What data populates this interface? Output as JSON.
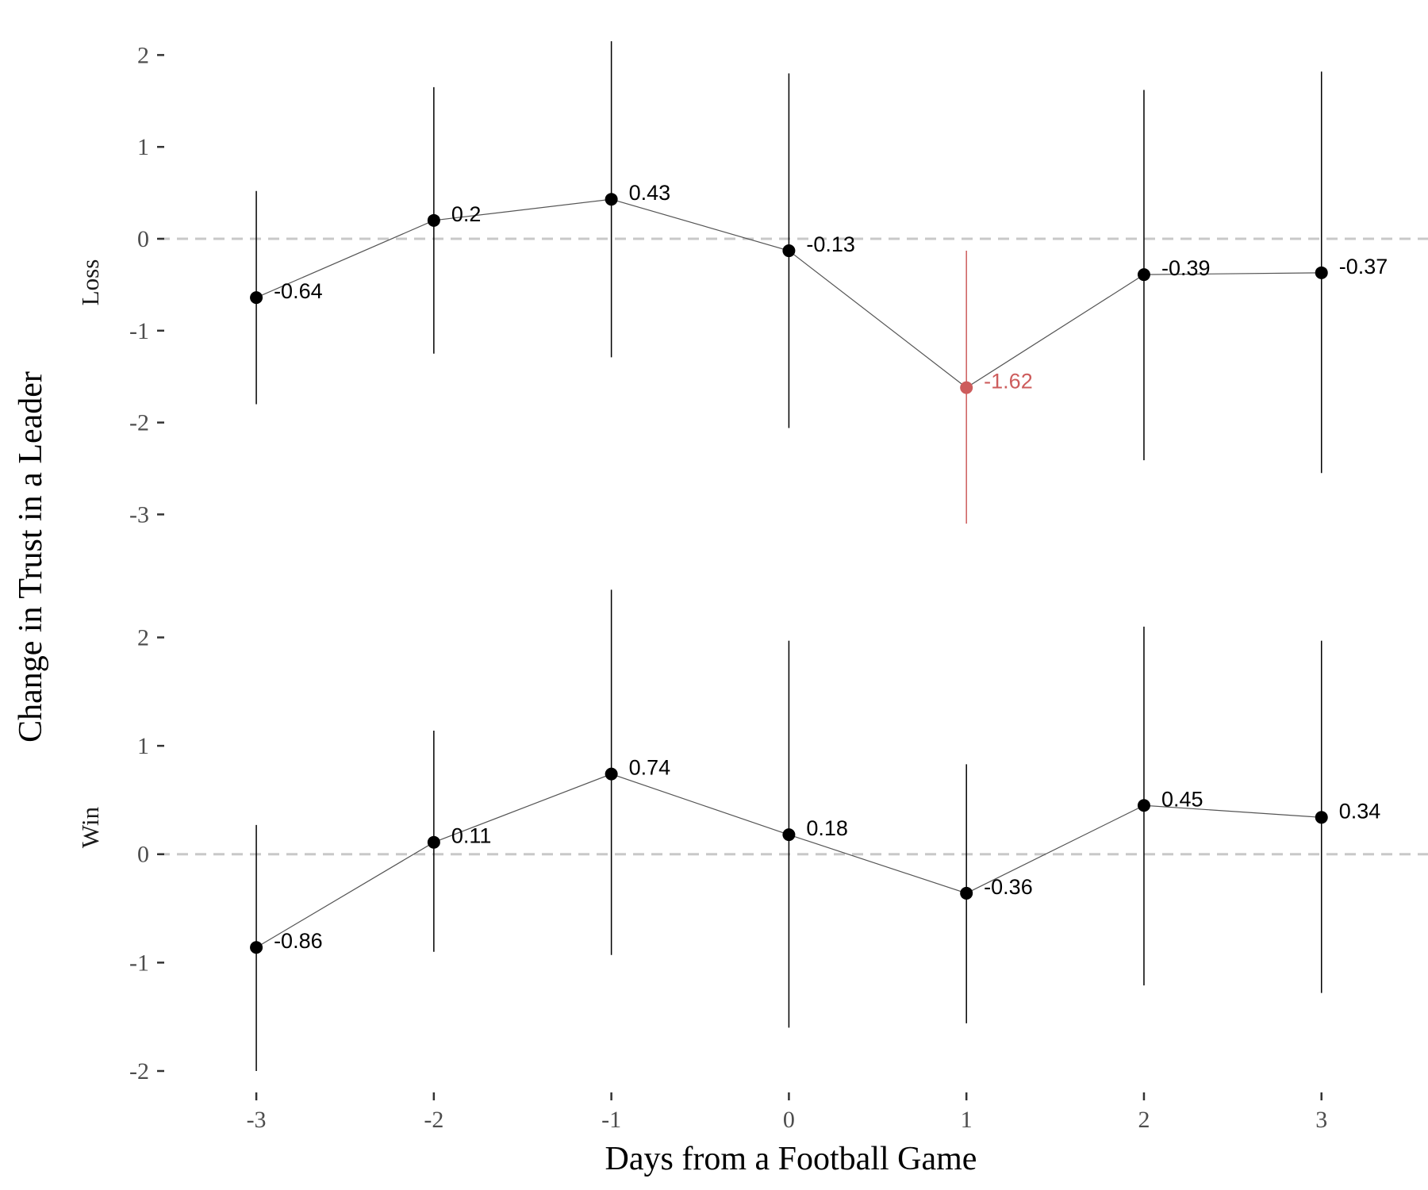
{
  "chart_data": {
    "type": "line",
    "xlabel": "Days from a Football Game",
    "ylabel": "Change in Trust in a Leader",
    "x": [
      -3,
      -2,
      -1,
      0,
      1,
      2,
      3
    ],
    "x_tick_labels": [
      "-3",
      "-2",
      "-1",
      "0",
      "1",
      "2",
      "3"
    ],
    "reference_line": 0,
    "colors": {
      "default": "#000000",
      "highlight": "#cd5c5c",
      "line": "#555555",
      "reference": "#c8c8c8"
    },
    "panels": [
      {
        "strip_label": "Loss",
        "ylim": [
          -3.1,
          2.15
        ],
        "y_ticks": [
          2,
          1,
          0,
          -1,
          -2,
          -3
        ],
        "y_tick_labels": [
          "2",
          "1",
          "0",
          "-1",
          "-2",
          "-3"
        ],
        "values": [
          -0.64,
          0.2,
          0.43,
          -0.13,
          -1.62,
          -0.39,
          -0.37
        ],
        "value_labels": [
          "-0.64",
          "0.2",
          "0.43",
          "-0.13",
          "-1.62",
          "-0.39",
          "-0.37"
        ],
        "ci_lower": [
          -1.8,
          -1.25,
          -1.29,
          -2.06,
          -3.1,
          -2.41,
          -2.55
        ],
        "ci_upper": [
          0.52,
          1.65,
          2.15,
          1.8,
          -0.13,
          1.62,
          1.82
        ],
        "highlight": [
          false,
          false,
          false,
          false,
          true,
          false,
          false
        ]
      },
      {
        "strip_label": "Win",
        "ylim": [
          -2.0,
          2.45
        ],
        "y_ticks": [
          2,
          1,
          0,
          -1,
          -2
        ],
        "y_tick_labels": [
          "2",
          "1",
          "0",
          "-1",
          "-2"
        ],
        "values": [
          -0.86,
          0.11,
          0.74,
          0.18,
          -0.36,
          0.45,
          0.34
        ],
        "value_labels": [
          "-0.86",
          "0.11",
          "0.74",
          "0.18",
          "-0.36",
          "0.45",
          "0.34"
        ],
        "ci_lower": [
          -2.0,
          -0.9,
          -0.93,
          -1.6,
          -1.56,
          -1.21,
          -1.28
        ],
        "ci_upper": [
          0.27,
          1.14,
          2.44,
          1.97,
          0.83,
          2.1,
          1.97
        ],
        "highlight": [
          false,
          false,
          false,
          false,
          false,
          false,
          false
        ]
      }
    ]
  }
}
